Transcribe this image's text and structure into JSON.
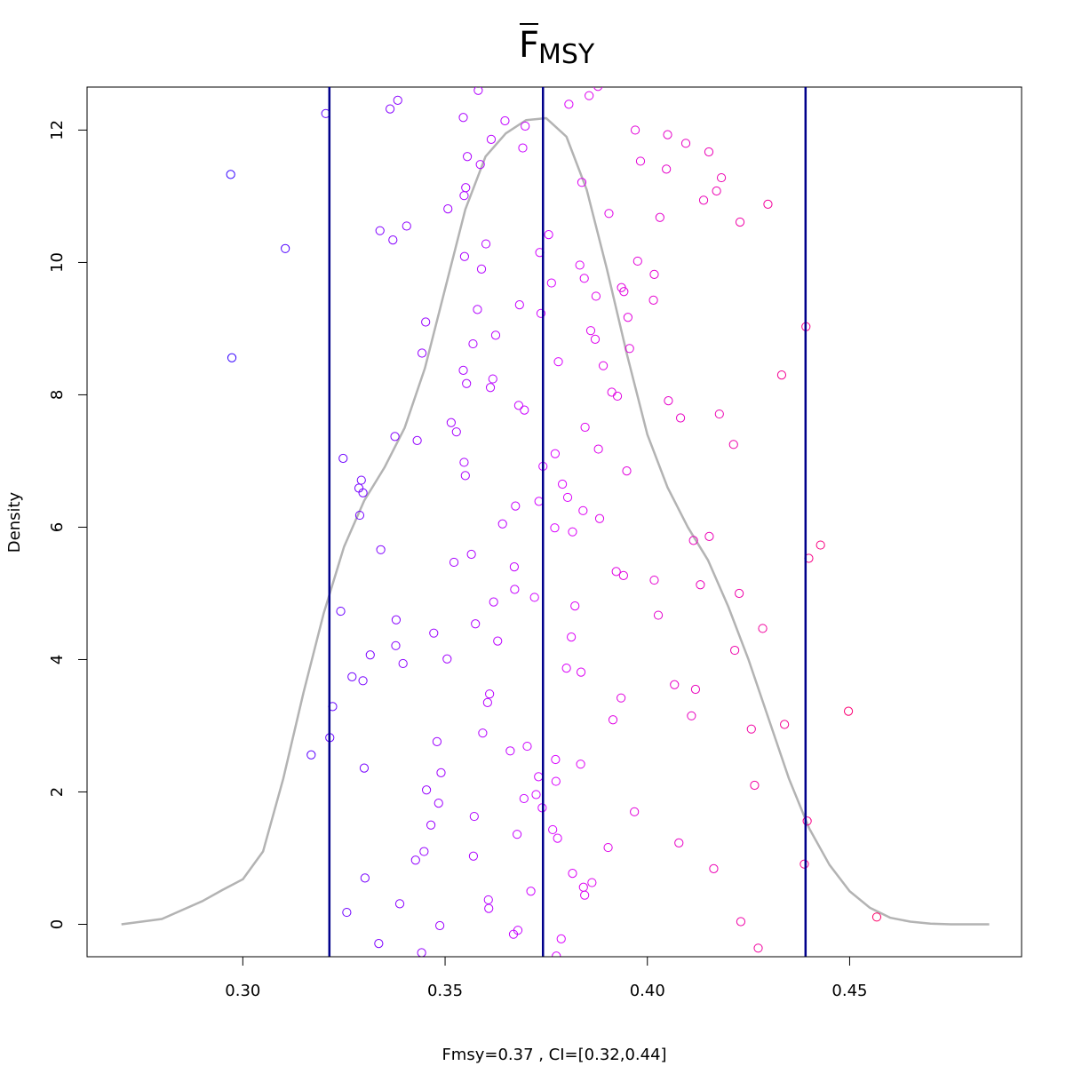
{
  "chart_data": {
    "type": "scatter",
    "title": "F",
    "title_subscript": "MSY",
    "title_overline": true,
    "xlabel": "Fmsy=0.37 , CI=[0.32,0.44]",
    "ylabel": "Density",
    "xlim": [
      0.2615,
      0.4925
    ],
    "ylim": [
      -0.49,
      12.65
    ],
    "x_ticks": [
      0.3,
      0.35,
      0.4,
      0.45
    ],
    "x_tick_labels": [
      "0.30",
      "0.35",
      "0.40",
      "0.45"
    ],
    "y_ticks": [
      0,
      2,
      4,
      6,
      8,
      10,
      12
    ],
    "y_tick_labels": [
      "0",
      "2",
      "4",
      "6",
      "8",
      "10",
      "12"
    ],
    "grid": false,
    "vlines": [
      {
        "name": "lower-ci",
        "x": 0.3214
      },
      {
        "name": "median",
        "x": 0.3742
      },
      {
        "name": "upper-ci",
        "x": 0.4391
      }
    ],
    "density_curve": {
      "color": "#b3b3b3",
      "x": [
        0.27,
        0.28,
        0.29,
        0.295,
        0.3,
        0.305,
        0.31,
        0.315,
        0.32,
        0.325,
        0.33,
        0.335,
        0.34,
        0.345,
        0.35,
        0.355,
        0.36,
        0.365,
        0.37,
        0.375,
        0.38,
        0.385,
        0.39,
        0.395,
        0.4,
        0.405,
        0.41,
        0.415,
        0.42,
        0.425,
        0.43,
        0.435,
        0.44,
        0.445,
        0.45,
        0.455,
        0.46,
        0.465,
        0.47,
        0.475,
        0.48,
        0.4845
      ],
      "y": [
        0.0,
        0.08,
        0.35,
        0.52,
        0.68,
        1.1,
        2.2,
        3.5,
        4.7,
        5.7,
        6.4,
        6.9,
        7.5,
        8.4,
        9.6,
        10.8,
        11.6,
        11.95,
        12.15,
        12.18,
        11.9,
        11.1,
        9.9,
        8.6,
        7.4,
        6.6,
        6.0,
        5.5,
        4.8,
        4.0,
        3.1,
        2.2,
        1.45,
        0.9,
        0.5,
        0.25,
        0.1,
        0.04,
        0.01,
        0.0,
        0.0,
        0.0
      ]
    },
    "color_scale": {
      "low": "#3300ff",
      "mid": "#d900ff",
      "high": "#ff0066",
      "x_low": 0.297,
      "x_high": 0.457
    },
    "points": [
      [
        0.297,
        11.33
      ],
      [
        0.2973,
        8.56
      ],
      [
        0.3105,
        10.21
      ],
      [
        0.3169,
        2.56
      ],
      [
        0.3205,
        12.25
      ],
      [
        0.3215,
        2.82
      ],
      [
        0.3222,
        3.29
      ],
      [
        0.3242,
        4.73
      ],
      [
        0.3248,
        7.04
      ],
      [
        0.3257,
        0.18
      ],
      [
        0.327,
        3.74
      ],
      [
        0.3287,
        6.59
      ],
      [
        0.3289,
        6.18
      ],
      [
        0.3293,
        6.71
      ],
      [
        0.3297,
        3.68
      ],
      [
        0.33,
        2.36
      ],
      [
        0.3302,
        0.7
      ],
      [
        0.3297,
        6.52
      ],
      [
        0.3315,
        4.07
      ],
      [
        0.3336,
        -0.29
      ],
      [
        0.3339,
        10.48
      ],
      [
        0.3341,
        5.66
      ],
      [
        0.3364,
        12.32
      ],
      [
        0.3371,
        10.34
      ],
      [
        0.3376,
        7.37
      ],
      [
        0.3378,
        4.21
      ],
      [
        0.3379,
        4.6
      ],
      [
        0.3383,
        12.45
      ],
      [
        0.3388,
        0.31
      ],
      [
        0.3396,
        3.94
      ],
      [
        0.3405,
        10.55
      ],
      [
        0.3427,
        0.97
      ],
      [
        0.3431,
        7.31
      ],
      [
        0.3442,
        -0.43
      ],
      [
        0.3443,
        8.63
      ],
      [
        0.3448,
        1.1
      ],
      [
        0.3452,
        9.1
      ],
      [
        0.3454,
        2.03
      ],
      [
        0.3465,
        1.5
      ],
      [
        0.3472,
        4.4
      ],
      [
        0.348,
        2.76
      ],
      [
        0.3484,
        1.83
      ],
      [
        0.3487,
        -0.02
      ],
      [
        0.349,
        2.29
      ],
      [
        0.3505,
        4.01
      ],
      [
        0.3507,
        10.81
      ],
      [
        0.3515,
        7.58
      ],
      [
        0.3522,
        5.47
      ],
      [
        0.3528,
        7.44
      ],
      [
        0.3545,
        12.19
      ],
      [
        0.3547,
        11.01
      ],
      [
        0.3545,
        8.37
      ],
      [
        0.3547,
        6.98
      ],
      [
        0.3548,
        10.09
      ],
      [
        0.355,
        6.78
      ],
      [
        0.3551,
        11.13
      ],
      [
        0.3553,
        8.17
      ],
      [
        0.3555,
        11.6
      ],
      [
        0.3565,
        5.59
      ],
      [
        0.3569,
        8.77
      ],
      [
        0.357,
        1.03
      ],
      [
        0.3572,
        1.63
      ],
      [
        0.3575,
        4.54
      ],
      [
        0.358,
        9.29
      ],
      [
        0.3582,
        12.6
      ],
      [
        0.3587,
        11.48
      ],
      [
        0.359,
        9.9
      ],
      [
        0.3593,
        2.89
      ],
      [
        0.3601,
        10.28
      ],
      [
        0.3605,
        3.35
      ],
      [
        0.3607,
        0.37
      ],
      [
        0.3608,
        0.24
      ],
      [
        0.361,
        3.48
      ],
      [
        0.3612,
        8.11
      ],
      [
        0.3614,
        11.86
      ],
      [
        0.3618,
        8.24
      ],
      [
        0.362,
        4.87
      ],
      [
        0.3625,
        8.9
      ],
      [
        0.363,
        4.28
      ],
      [
        0.3642,
        6.05
      ],
      [
        0.3648,
        12.14
      ],
      [
        0.3661,
        2.62
      ],
      [
        0.3669,
        -0.15
      ],
      [
        0.3671,
        5.4
      ],
      [
        0.3672,
        5.06
      ],
      [
        0.3674,
        6.32
      ],
      [
        0.3678,
        1.36
      ],
      [
        0.368,
        -0.09
      ],
      [
        0.3682,
        7.84
      ],
      [
        0.3684,
        9.36
      ],
      [
        0.3692,
        11.73
      ],
      [
        0.3695,
        1.9
      ],
      [
        0.3696,
        7.77
      ],
      [
        0.3698,
        12.06
      ],
      [
        0.3703,
        2.69
      ],
      [
        0.3712,
        0.5
      ],
      [
        0.3721,
        4.94
      ],
      [
        0.3725,
        1.96
      ],
      [
        0.3731,
        2.23
      ],
      [
        0.3732,
        6.39
      ],
      [
        0.3734,
        10.15
      ],
      [
        0.3737,
        9.23
      ],
      [
        0.374,
        1.76
      ],
      [
        0.3742,
        6.92
      ],
      [
        0.3756,
        10.42
      ],
      [
        0.3763,
        9.69
      ],
      [
        0.3766,
        1.43
      ],
      [
        0.3772,
        7.11
      ],
      [
        0.3771,
        5.99
      ],
      [
        0.3773,
        2.49
      ],
      [
        0.3774,
        2.16
      ],
      [
        0.3775,
        -0.48
      ],
      [
        0.3778,
        1.3
      ],
      [
        0.378,
        8.5
      ],
      [
        0.3787,
        -0.22
      ],
      [
        0.379,
        6.65
      ],
      [
        0.38,
        3.87
      ],
      [
        0.3803,
        6.45
      ],
      [
        0.3806,
        12.39
      ],
      [
        0.3812,
        4.34
      ],
      [
        0.3815,
        0.77
      ],
      [
        0.3815,
        5.93
      ],
      [
        0.3821,
        4.81
      ],
      [
        0.3833,
        9.96
      ],
      [
        0.3835,
        2.42
      ],
      [
        0.3836,
        3.81
      ],
      [
        0.3838,
        11.21
      ],
      [
        0.3841,
        6.25
      ],
      [
        0.3842,
        0.56
      ],
      [
        0.3844,
        9.76
      ],
      [
        0.3845,
        0.44
      ],
      [
        0.3846,
        7.51
      ],
      [
        0.3856,
        12.52
      ],
      [
        0.386,
        8.97
      ],
      [
        0.3863,
        0.63
      ],
      [
        0.3871,
        8.84
      ],
      [
        0.3873,
        9.49
      ],
      [
        0.3878,
        12.66
      ],
      [
        0.3879,
        7.18
      ],
      [
        0.3882,
        6.13
      ],
      [
        0.3891,
        8.44
      ],
      [
        0.3903,
        1.16
      ],
      [
        0.3905,
        10.74
      ],
      [
        0.3912,
        8.04
      ],
      [
        0.3915,
        3.09
      ],
      [
        0.3923,
        5.33
      ],
      [
        0.3926,
        7.98
      ],
      [
        0.3935,
        3.42
      ],
      [
        0.3936,
        9.62
      ],
      [
        0.3941,
        5.27
      ],
      [
        0.3942,
        9.56
      ],
      [
        0.3949,
        6.85
      ],
      [
        0.3952,
        9.17
      ],
      [
        0.3956,
        8.7
      ],
      [
        0.3968,
        1.7
      ],
      [
        0.397,
        12.0
      ],
      [
        0.3976,
        10.02
      ],
      [
        0.3983,
        11.53
      ],
      [
        0.4015,
        9.43
      ],
      [
        0.4017,
        9.82
      ],
      [
        0.4017,
        5.2
      ],
      [
        0.4027,
        4.67
      ],
      [
        0.4031,
        10.68
      ],
      [
        0.4047,
        11.41
      ],
      [
        0.405,
        11.93
      ],
      [
        0.4052,
        7.91
      ],
      [
        0.4067,
        3.62
      ],
      [
        0.4078,
        1.23
      ],
      [
        0.4082,
        7.65
      ],
      [
        0.4095,
        11.8
      ],
      [
        0.4109,
        3.15
      ],
      [
        0.4114,
        5.8
      ],
      [
        0.4119,
        3.55
      ],
      [
        0.4131,
        5.13
      ],
      [
        0.4139,
        10.94
      ],
      [
        0.4152,
        11.67
      ],
      [
        0.4153,
        5.86
      ],
      [
        0.4164,
        0.84
      ],
      [
        0.4171,
        11.08
      ],
      [
        0.4178,
        7.71
      ],
      [
        0.4183,
        11.28
      ],
      [
        0.4213,
        7.25
      ],
      [
        0.4216,
        4.14
      ],
      [
        0.4227,
        5.0
      ],
      [
        0.4229,
        10.61
      ],
      [
        0.4231,
        0.04
      ],
      [
        0.4257,
        2.95
      ],
      [
        0.4265,
        2.1
      ],
      [
        0.4274,
        -0.36
      ],
      [
        0.4285,
        4.47
      ],
      [
        0.4298,
        10.88
      ],
      [
        0.4332,
        8.3
      ],
      [
        0.4339,
        3.02
      ],
      [
        0.4388,
        0.91
      ],
      [
        0.4392,
        9.03
      ],
      [
        0.4395,
        1.56
      ],
      [
        0.4399,
        5.53
      ],
      [
        0.4428,
        5.73
      ],
      [
        0.4497,
        3.22
      ],
      [
        0.4567,
        0.11
      ]
    ]
  }
}
